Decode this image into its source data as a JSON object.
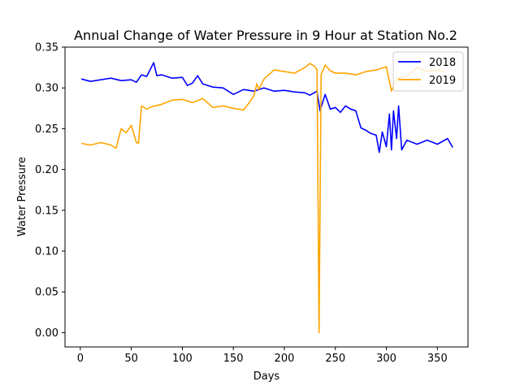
{
  "chart_data": {
    "type": "line",
    "title": "Annual Change of Water Pressure in 9 Hour at Station No.2",
    "xlabel": "Days",
    "ylabel": "Water Pressure",
    "xlim": [
      -15,
      380
    ],
    "ylim": [
      -0.0175,
      0.35
    ],
    "xticks": [
      0,
      50,
      100,
      150,
      200,
      250,
      300,
      350
    ],
    "xtick_labels": [
      "0",
      "50",
      "100",
      "150",
      "200",
      "250",
      "300",
      "350"
    ],
    "yticks": [
      0.0,
      0.05,
      0.1,
      0.15,
      0.2,
      0.25,
      0.3,
      0.35
    ],
    "ytick_labels": [
      "0.00",
      "0.05",
      "0.10",
      "0.15",
      "0.20",
      "0.25",
      "0.30",
      "0.35"
    ],
    "grid": false,
    "legend_position": "top-right",
    "series": [
      {
        "name": "2018",
        "color": "#0000ff",
        "x": [
          1,
          10,
          20,
          30,
          40,
          50,
          55,
          60,
          65,
          72,
          75,
          80,
          90,
          100,
          105,
          110,
          115,
          120,
          130,
          140,
          150,
          160,
          170,
          180,
          190,
          200,
          210,
          220,
          225,
          232,
          235,
          240,
          245,
          250,
          255,
          260,
          265,
          270,
          275,
          280,
          285,
          290,
          293,
          296,
          300,
          303,
          305,
          307,
          310,
          312,
          315,
          320,
          330,
          340,
          350,
          360,
          365
        ],
        "y": [
          0.311,
          0.308,
          0.31,
          0.312,
          0.309,
          0.31,
          0.307,
          0.316,
          0.314,
          0.331,
          0.315,
          0.316,
          0.312,
          0.313,
          0.303,
          0.306,
          0.315,
          0.305,
          0.301,
          0.3,
          0.292,
          0.298,
          0.296,
          0.3,
          0.296,
          0.297,
          0.295,
          0.294,
          0.291,
          0.296,
          0.272,
          0.292,
          0.274,
          0.276,
          0.27,
          0.278,
          0.274,
          0.272,
          0.251,
          0.248,
          0.244,
          0.242,
          0.221,
          0.246,
          0.228,
          0.268,
          0.224,
          0.272,
          0.238,
          0.278,
          0.224,
          0.236,
          0.231,
          0.236,
          0.231,
          0.238,
          0.227
        ]
      },
      {
        "name": "2019",
        "color": "#ffa500",
        "x": [
          1,
          10,
          20,
          30,
          35,
          40,
          45,
          50,
          55,
          57,
          60,
          65,
          70,
          80,
          90,
          100,
          110,
          120,
          130,
          140,
          150,
          160,
          165,
          170,
          173,
          175,
          180,
          190,
          200,
          210,
          220,
          225,
          230,
          232,
          234,
          236,
          240,
          245,
          250,
          260,
          270,
          280,
          290,
          300,
          305,
          310,
          320,
          330,
          340,
          350,
          357
        ],
        "y": [
          0.232,
          0.23,
          0.233,
          0.23,
          0.226,
          0.25,
          0.245,
          0.254,
          0.233,
          0.232,
          0.278,
          0.274,
          0.277,
          0.28,
          0.285,
          0.286,
          0.282,
          0.287,
          0.276,
          0.278,
          0.275,
          0.273,
          0.281,
          0.29,
          0.305,
          0.298,
          0.311,
          0.322,
          0.32,
          0.318,
          0.325,
          0.33,
          0.326,
          0.322,
          0.0,
          0.316,
          0.328,
          0.321,
          0.318,
          0.318,
          0.316,
          0.32,
          0.322,
          0.326,
          0.296,
          0.312,
          0.314,
          0.325,
          0.32,
          0.322,
          0.32
        ]
      }
    ]
  }
}
